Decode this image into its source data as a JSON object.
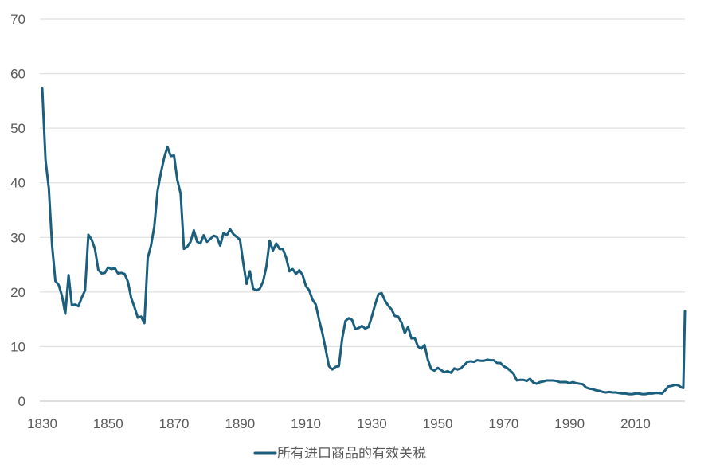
{
  "chart_data": {
    "type": "line",
    "title": "",
    "xlabel": "",
    "ylabel": "",
    "xlim": [
      1830,
      2025
    ],
    "ylim": [
      0,
      70
    ],
    "x_ticks": [
      "1830",
      "1850",
      "1870",
      "1890",
      "1910",
      "1930",
      "1950",
      "1970",
      "1990",
      "2010"
    ],
    "y_ticks": [
      "0",
      "10",
      "20",
      "30",
      "40",
      "50",
      "60",
      "70"
    ],
    "grid": "horizontal",
    "legend_position": "bottom",
    "series": [
      {
        "name": "所有进口商品的有效关税",
        "color": "#1b5f7e",
        "points": [
          [
            1830,
            57.4
          ],
          [
            1831,
            44.2
          ],
          [
            1832,
            39
          ],
          [
            1833,
            28.5
          ],
          [
            1834,
            22
          ],
          [
            1835,
            21.3
          ],
          [
            1836,
            19.3
          ],
          [
            1837,
            16
          ],
          [
            1838,
            23.1
          ],
          [
            1839,
            17.6
          ],
          [
            1840,
            17.7
          ],
          [
            1841,
            17.4
          ],
          [
            1842,
            19
          ],
          [
            1843,
            20.3
          ],
          [
            1844,
            30.5
          ],
          [
            1845,
            29.6
          ],
          [
            1846,
            27.9
          ],
          [
            1847,
            24.1
          ],
          [
            1848,
            23.4
          ],
          [
            1849,
            23.5
          ],
          [
            1850,
            24.5
          ],
          [
            1851,
            24.2
          ],
          [
            1852,
            24.4
          ],
          [
            1853,
            23.4
          ],
          [
            1854,
            23.5
          ],
          [
            1855,
            23.3
          ],
          [
            1856,
            21.9
          ],
          [
            1857,
            18.9
          ],
          [
            1858,
            17.2
          ],
          [
            1859,
            15.3
          ],
          [
            1860,
            15.5
          ],
          [
            1861,
            14.3
          ],
          [
            1862,
            26.2
          ],
          [
            1863,
            28.5
          ],
          [
            1864,
            32
          ],
          [
            1865,
            38.5
          ],
          [
            1866,
            41.8
          ],
          [
            1867,
            44.6
          ],
          [
            1868,
            46.6
          ],
          [
            1869,
            44.9
          ],
          [
            1870,
            45
          ],
          [
            1871,
            40.5
          ],
          [
            1872,
            38
          ],
          [
            1873,
            27.9
          ],
          [
            1874,
            28.3
          ],
          [
            1875,
            29.2
          ],
          [
            1876,
            31.3
          ],
          [
            1877,
            29.2
          ],
          [
            1878,
            28.9
          ],
          [
            1879,
            30.4
          ],
          [
            1880,
            29.2
          ],
          [
            1881,
            29.7
          ],
          [
            1882,
            30.3
          ],
          [
            1883,
            30.1
          ],
          [
            1884,
            28.5
          ],
          [
            1885,
            30.8
          ],
          [
            1886,
            30.4
          ],
          [
            1887,
            31.5
          ],
          [
            1888,
            30.6
          ],
          [
            1889,
            30.1
          ],
          [
            1890,
            29.6
          ],
          [
            1891,
            25.3
          ],
          [
            1892,
            21.5
          ],
          [
            1893,
            23.8
          ],
          [
            1894,
            20.6
          ],
          [
            1895,
            20.3
          ],
          [
            1896,
            20.6
          ],
          [
            1897,
            21.9
          ],
          [
            1898,
            24.6
          ],
          [
            1899,
            29.4
          ],
          [
            1900,
            27.6
          ],
          [
            1901,
            28.9
          ],
          [
            1902,
            27.9
          ],
          [
            1903,
            27.9
          ],
          [
            1904,
            26.3
          ],
          [
            1905,
            23.8
          ],
          [
            1906,
            24.2
          ],
          [
            1907,
            23.3
          ],
          [
            1908,
            24
          ],
          [
            1909,
            23.1
          ],
          [
            1910,
            21.1
          ],
          [
            1911,
            20.3
          ],
          [
            1912,
            18.6
          ],
          [
            1913,
            17.7
          ],
          [
            1914,
            14.9
          ],
          [
            1915,
            12.5
          ],
          [
            1916,
            9.5
          ],
          [
            1917,
            6.4
          ],
          [
            1918,
            5.8
          ],
          [
            1919,
            6.3
          ],
          [
            1920,
            6.4
          ],
          [
            1921,
            11.4
          ],
          [
            1922,
            14.7
          ],
          [
            1923,
            15.2
          ],
          [
            1924,
            14.9
          ],
          [
            1925,
            13.2
          ],
          [
            1926,
            13.4
          ],
          [
            1927,
            13.8
          ],
          [
            1928,
            13.3
          ],
          [
            1929,
            13.6
          ],
          [
            1930,
            15.5
          ],
          [
            1931,
            17.7
          ],
          [
            1932,
            19.6
          ],
          [
            1933,
            19.8
          ],
          [
            1934,
            18.4
          ],
          [
            1935,
            17.5
          ],
          [
            1936,
            16.8
          ],
          [
            1937,
            15.6
          ],
          [
            1938,
            15.5
          ],
          [
            1939,
            14.4
          ],
          [
            1940,
            12.5
          ],
          [
            1941,
            13.6
          ],
          [
            1942,
            11.5
          ],
          [
            1943,
            11.6
          ],
          [
            1944,
            10
          ],
          [
            1945,
            9.6
          ],
          [
            1946,
            10.3
          ],
          [
            1947,
            7.6
          ],
          [
            1948,
            5.9
          ],
          [
            1949,
            5.6
          ],
          [
            1950,
            6.1
          ],
          [
            1951,
            5.7
          ],
          [
            1952,
            5.3
          ],
          [
            1953,
            5.5
          ],
          [
            1954,
            5.2
          ],
          [
            1955,
            6
          ],
          [
            1956,
            5.8
          ],
          [
            1957,
            6
          ],
          [
            1958,
            6.6
          ],
          [
            1959,
            7.2
          ],
          [
            1960,
            7.3
          ],
          [
            1961,
            7.2
          ],
          [
            1962,
            7.5
          ],
          [
            1963,
            7.4
          ],
          [
            1964,
            7.4
          ],
          [
            1965,
            7.6
          ],
          [
            1966,
            7.5
          ],
          [
            1967,
            7.5
          ],
          [
            1968,
            7
          ],
          [
            1969,
            7
          ],
          [
            1970,
            6.4
          ],
          [
            1971,
            6.1
          ],
          [
            1972,
            5.6
          ],
          [
            1973,
            5
          ],
          [
            1974,
            3.8
          ],
          [
            1975,
            3.9
          ],
          [
            1976,
            3.9
          ],
          [
            1977,
            3.7
          ],
          [
            1978,
            4.1
          ],
          [
            1979,
            3.4
          ],
          [
            1980,
            3.2
          ],
          [
            1981,
            3.5
          ],
          [
            1982,
            3.6
          ],
          [
            1983,
            3.8
          ],
          [
            1984,
            3.8
          ],
          [
            1985,
            3.8
          ],
          [
            1986,
            3.7
          ],
          [
            1987,
            3.5
          ],
          [
            1988,
            3.5
          ],
          [
            1989,
            3.5
          ],
          [
            1990,
            3.3
          ],
          [
            1991,
            3.5
          ],
          [
            1992,
            3.3
          ],
          [
            1993,
            3.2
          ],
          [
            1994,
            3.1
          ],
          [
            1995,
            2.5
          ],
          [
            1996,
            2.3
          ],
          [
            1997,
            2.2
          ],
          [
            1998,
            2
          ],
          [
            1999,
            1.9
          ],
          [
            2000,
            1.7
          ],
          [
            2001,
            1.6
          ],
          [
            2002,
            1.7
          ],
          [
            2003,
            1.6
          ],
          [
            2004,
            1.6
          ],
          [
            2005,
            1.5
          ],
          [
            2006,
            1.4
          ],
          [
            2007,
            1.4
          ],
          [
            2008,
            1.3
          ],
          [
            2009,
            1.3
          ],
          [
            2010,
            1.4
          ],
          [
            2011,
            1.4
          ],
          [
            2012,
            1.3
          ],
          [
            2013,
            1.3
          ],
          [
            2014,
            1.4
          ],
          [
            2015,
            1.4
          ],
          [
            2016,
            1.5
          ],
          [
            2017,
            1.5
          ],
          [
            2018,
            1.4
          ],
          [
            2019,
            2
          ],
          [
            2020,
            2.7
          ],
          [
            2021,
            2.8
          ],
          [
            2022,
            3
          ],
          [
            2023,
            2.9
          ],
          [
            2024,
            2.5
          ],
          [
            2024.5,
            2.4
          ],
          [
            2025,
            16.5
          ]
        ]
      }
    ]
  }
}
